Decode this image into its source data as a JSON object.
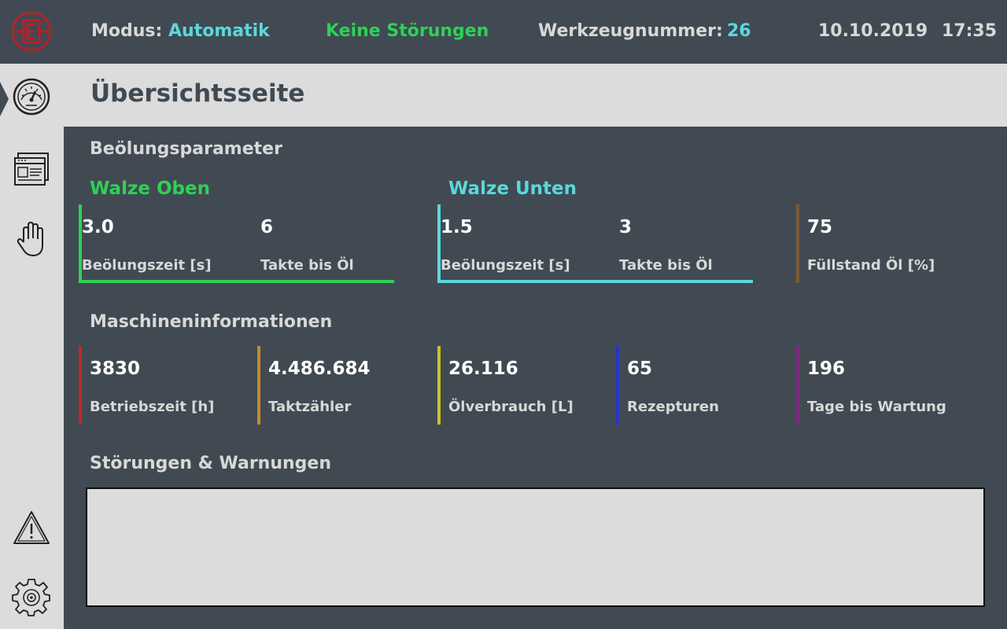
{
  "header": {
    "mode_label": "Modus:",
    "mode_value": "Automatik",
    "status": "Keine Störungen",
    "tool_label": "Werkzeugnummer:",
    "tool_value": "26",
    "date": "10.10.2019",
    "time": "17:35"
  },
  "sidebar": {
    "items": [
      {
        "icon": "gauge-icon",
        "active": true
      },
      {
        "icon": "screens-icon",
        "active": false
      },
      {
        "icon": "hand-icon",
        "active": false
      },
      {
        "icon": "warning-icon",
        "active": false
      },
      {
        "icon": "settings-gear-icon",
        "active": false
      }
    ]
  },
  "page": {
    "title": "Übersichtsseite"
  },
  "oiling": {
    "section_title": "Beölungsparameter",
    "top_roll": {
      "title": "Walze Oben",
      "color": "#2ed158",
      "time_value": "3.0",
      "time_label": "Beölungszeit [s]",
      "cycles_value": "6",
      "cycles_label": "Takte bis Öl"
    },
    "bottom_roll": {
      "title": "Walze Unten",
      "color": "#5ad8dc",
      "time_value": "1.5",
      "time_label": "Beölungszeit [s]",
      "cycles_value": "3",
      "cycles_label": "Takte bis Öl"
    },
    "oil_level": {
      "color": "#7a5a3a",
      "value": "75",
      "label": "Füllstand Öl [%]"
    }
  },
  "machine": {
    "section_title": "Maschineninformationen",
    "tiles": [
      {
        "value": "3830",
        "label": "Betriebszeit [h]",
        "color": "#c0282c"
      },
      {
        "value": "4.486.684",
        "label": "Taktzähler",
        "color": "#c88a2a"
      },
      {
        "value": "26.116",
        "label": "Ölverbrauch [L]",
        "color": "#c8c428"
      },
      {
        "value": "65",
        "label": "Rezepturen",
        "color": "#2a32c8"
      },
      {
        "value": "196",
        "label": "Tage bis Wartung",
        "color": "#7a2a7a"
      }
    ]
  },
  "faults": {
    "section_title": "Störungen & Warnungen",
    "messages": []
  },
  "colors": {
    "background": "#414a52",
    "panel": "#dcdcdc",
    "accent_cyan": "#5ad8dc",
    "accent_green": "#2ed158",
    "logo_red": "#b8202a"
  }
}
